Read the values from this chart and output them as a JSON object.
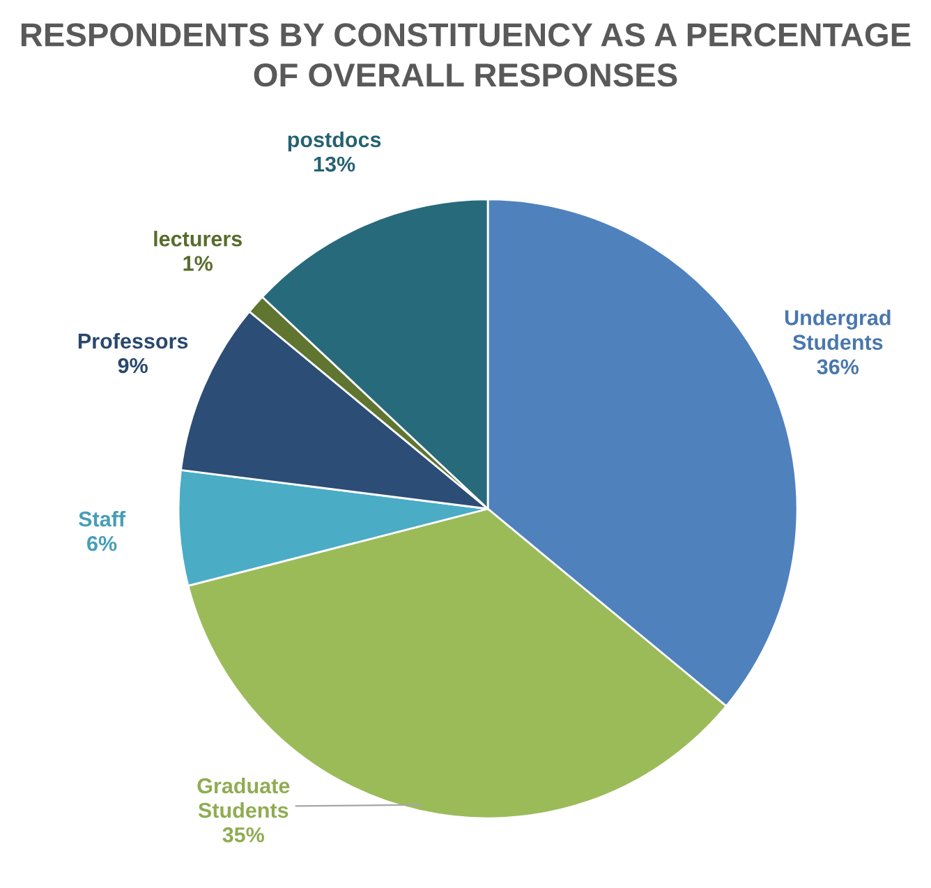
{
  "chart_data": {
    "type": "pie",
    "title": "RESPONDENTS BY CONSTITUENCY AS A PERCENTAGE OF OVERALL RESPONSES",
    "categories": [
      "Undergrad Students",
      "Graduate Students",
      "Staff",
      "Professors",
      "lecturers",
      "postdocs"
    ],
    "values": [
      36,
      35,
      6,
      9,
      1,
      13
    ],
    "colors": [
      "#4f81bd",
      "#9bbb59",
      "#4bacc6",
      "#2c4d75",
      "#5f7530",
      "#276a7c"
    ],
    "value_labels": [
      "36%",
      "35%",
      "6%",
      "9%",
      "1%",
      "13%"
    ],
    "legend": false
  }
}
